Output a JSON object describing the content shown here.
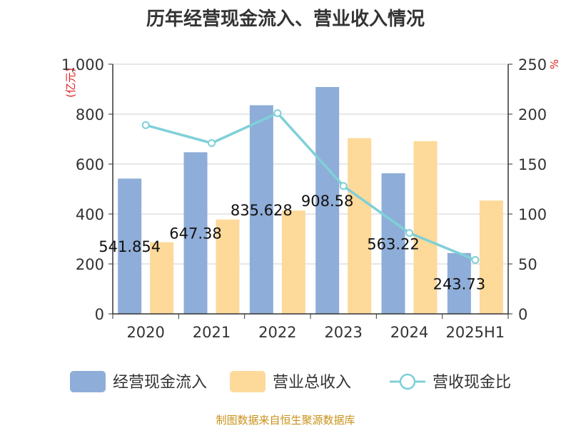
{
  "chart_data": {
    "type": "bar",
    "title": "历年经营现金流入、营业收入情况",
    "categories": [
      "2020",
      "2021",
      "2022",
      "2023",
      "2024",
      "2025H1"
    ],
    "ylabel_left": "(亿元)",
    "ylabel_right": "%",
    "ylim_left": [
      0,
      1000
    ],
    "ylim_right": [
      0,
      250
    ],
    "yticks_left": [
      "0",
      "200",
      "400",
      "600",
      "800",
      "1,000"
    ],
    "yticks_right": [
      "0",
      "50",
      "100",
      "150",
      "200",
      "250"
    ],
    "grid": true,
    "legend_position": "bottom",
    "series": [
      {
        "name": "经营现金流入",
        "type": "bar",
        "axis": "left",
        "color": "#8eadd8",
        "values": [
          541.854,
          647.38,
          835.628,
          908.58,
          563.22,
          243.73
        ],
        "labels": [
          "541.854",
          "647.38",
          "835.628",
          "908.58",
          "563.22",
          "243.73"
        ]
      },
      {
        "name": "营业总收入",
        "type": "bar",
        "axis": "left",
        "color": "#fdd99a",
        "values": [
          287,
          378,
          414,
          704,
          692,
          454
        ]
      },
      {
        "name": "营收现金比",
        "type": "line",
        "axis": "right",
        "color": "#7fd0d8",
        "values": [
          189,
          171,
          201,
          128,
          81,
          54
        ]
      }
    ]
  },
  "source": "制图数据来自恒生聚源数据库"
}
